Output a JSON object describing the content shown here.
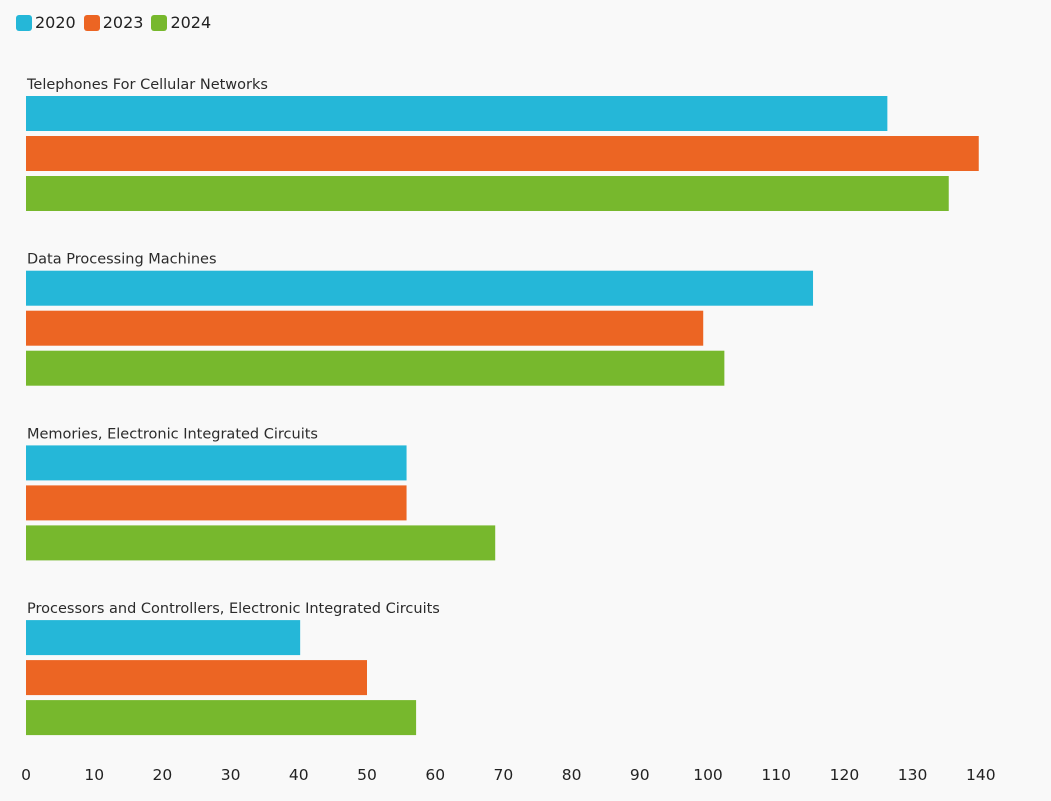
{
  "chart_data": {
    "type": "bar",
    "orientation": "horizontal",
    "categories": [
      "Telephones For Cellular Networks",
      "Data Processing Machines",
      "Memories, Electronic Integrated Circuits",
      "Processors and Controllers, Electronic Integrated Circuits"
    ],
    "series": [
      {
        "name": "2020",
        "color": "#25b7d8",
        "values": [
          126.3,
          115.4,
          55.8,
          40.2
        ]
      },
      {
        "name": "2023",
        "color": "#ec6523",
        "values": [
          139.7,
          99.3,
          55.8,
          50.0
        ]
      },
      {
        "name": "2024",
        "color": "#77b82d",
        "values": [
          135.3,
          102.4,
          68.8,
          57.2
        ]
      }
    ],
    "x_ticks": [
      "0",
      "10",
      "20",
      "30",
      "40",
      "50",
      "60",
      "70",
      "80",
      "90",
      "100",
      "110",
      "120",
      "130",
      "140"
    ],
    "xlim": [
      0,
      140
    ],
    "legend_position": "top-left",
    "grid": false
  }
}
